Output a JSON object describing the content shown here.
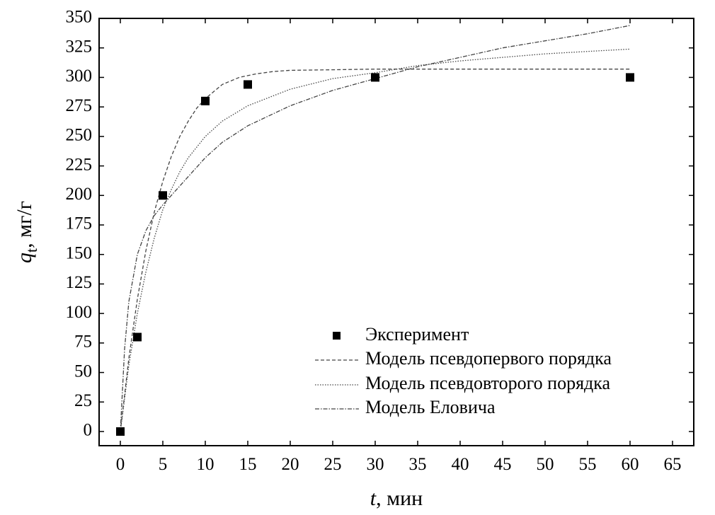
{
  "chart_data": {
    "type": "scatter",
    "x_label": {
      "var": "t",
      "unit": ", мин"
    },
    "y_label": {
      "var": "q",
      "sub": "t",
      "unit": ", мг/г"
    },
    "xlim": [
      -2.5,
      67.5
    ],
    "ylim": [
      -12,
      350
    ],
    "x_ticks": [
      0,
      5,
      10,
      15,
      20,
      25,
      30,
      35,
      40,
      45,
      50,
      55,
      60,
      65
    ],
    "y_ticks": [
      0,
      25,
      50,
      75,
      100,
      125,
      150,
      175,
      200,
      225,
      250,
      275,
      300,
      325,
      350
    ],
    "x_tick_labels": [
      "0",
      "5",
      "10",
      "15",
      "20",
      "25",
      "30",
      "35",
      "40",
      "45",
      "50",
      "55",
      "60",
      "65"
    ],
    "y_tick_labels": [
      "0",
      "25",
      "50",
      "75",
      "100",
      "125",
      "150",
      "175",
      "200",
      "225",
      "250",
      "275",
      "300",
      "325",
      "350"
    ],
    "legend_position": "bottom-right",
    "grid": false,
    "series": [
      {
        "name": "Эксперимент",
        "kind": "points",
        "marker": "square",
        "color": "#000000",
        "points": [
          [
            0,
            0
          ],
          [
            2,
            80
          ],
          [
            5,
            200
          ],
          [
            10,
            280
          ],
          [
            15,
            294
          ],
          [
            30,
            300
          ],
          [
            60,
            300
          ]
        ]
      },
      {
        "name": "Модель псевдопервого порядка",
        "kind": "line",
        "dash": "dashed",
        "color": "#444444",
        "points": [
          [
            0,
            0
          ],
          [
            1,
            62
          ],
          [
            2,
            112
          ],
          [
            3,
            153
          ],
          [
            4,
            186
          ],
          [
            5,
            212
          ],
          [
            6,
            233
          ],
          [
            7,
            250
          ],
          [
            8,
            263
          ],
          [
            9,
            274
          ],
          [
            10,
            282
          ],
          [
            12,
            294
          ],
          [
            14,
            300
          ],
          [
            16,
            303
          ],
          [
            18,
            305
          ],
          [
            20,
            306
          ],
          [
            25,
            306.5
          ],
          [
            30,
            307
          ],
          [
            40,
            307
          ],
          [
            50,
            307
          ],
          [
            60,
            307
          ]
        ]
      },
      {
        "name": "Модель псевдовторого порядка",
        "kind": "line",
        "dash": "dotted",
        "color": "#444444",
        "points": [
          [
            0,
            0
          ],
          [
            1,
            56
          ],
          [
            2,
            100
          ],
          [
            3,
            135
          ],
          [
            4,
            164
          ],
          [
            5,
            188
          ],
          [
            6,
            205
          ],
          [
            7,
            220
          ],
          [
            8,
            232
          ],
          [
            10,
            250
          ],
          [
            12,
            263
          ],
          [
            15,
            276
          ],
          [
            20,
            290
          ],
          [
            25,
            299
          ],
          [
            30,
            304
          ],
          [
            35,
            310
          ],
          [
            40,
            314
          ],
          [
            45,
            317
          ],
          [
            50,
            320
          ],
          [
            55,
            322
          ],
          [
            60,
            324
          ]
        ]
      },
      {
        "name": "Модель Еловича",
        "kind": "line",
        "dash": "dashdot",
        "color": "#444444",
        "points": [
          [
            0,
            0
          ],
          [
            0.5,
            70
          ],
          [
            1,
            110
          ],
          [
            2,
            150
          ],
          [
            3,
            170
          ],
          [
            4,
            183
          ],
          [
            5,
            192
          ],
          [
            7,
            208
          ],
          [
            10,
            232
          ],
          [
            12,
            245
          ],
          [
            15,
            259
          ],
          [
            20,
            276
          ],
          [
            25,
            289
          ],
          [
            30,
            299
          ],
          [
            35,
            309
          ],
          [
            40,
            317
          ],
          [
            45,
            325
          ],
          [
            50,
            331
          ],
          [
            55,
            337
          ],
          [
            60,
            344
          ]
        ]
      }
    ]
  }
}
